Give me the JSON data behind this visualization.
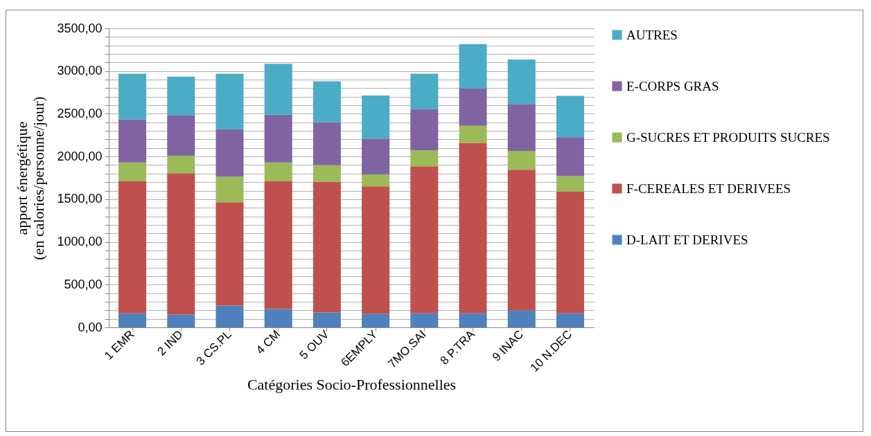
{
  "chart_data": {
    "type": "bar",
    "stacked": true,
    "xlabel": "Catégories Socio-Professionnelles",
    "ylabel": "apport énergétique\n(en calories/personne/jour)",
    "categories": [
      "1 EMR",
      "2 IND",
      "3 CS.PL",
      "4 CM",
      "5 OUV",
      "6EMPLY",
      "7MO.SAI",
      "8 P.TRA",
      "9 INAC",
      "10 N.DEC"
    ],
    "series": [
      {
        "name": "D-LAIT ET DERIVES",
        "color": "#4f81bd",
        "values": [
          165,
          150,
          255,
          215,
          175,
          160,
          165,
          165,
          200,
          165
        ]
      },
      {
        "name": "F-CEREALES ET DERIVEES",
        "color": "#c0504d",
        "values": [
          1545,
          1655,
          1210,
          1495,
          1530,
          1490,
          1720,
          1995,
          1645,
          1425
        ]
      },
      {
        "name": "G-SUCRES ET PRODUITS SUCRES",
        "color": "#9bbb59",
        "values": [
          220,
          205,
          300,
          220,
          195,
          140,
          190,
          200,
          220,
          180
        ]
      },
      {
        "name": "E-CORPS GRAS",
        "color": "#8064a2",
        "values": [
          505,
          470,
          555,
          560,
          500,
          420,
          480,
          435,
          550,
          455
        ]
      },
      {
        "name": "AUTRES",
        "color": "#4bacc6",
        "values": [
          535,
          455,
          650,
          595,
          480,
          505,
          415,
          520,
          520,
          485
        ]
      }
    ],
    "ylim": [
      0,
      3500
    ],
    "yticks": [
      {
        "value": 0,
        "label": "0,00"
      },
      {
        "value": 100,
        "label": null
      },
      {
        "value": 200,
        "label": null
      },
      {
        "value": 300,
        "label": null
      },
      {
        "value": 400,
        "label": null
      },
      {
        "value": 500,
        "label": "500,00"
      },
      {
        "value": 600,
        "label": null
      },
      {
        "value": 700,
        "label": null
      },
      {
        "value": 800,
        "label": null
      },
      {
        "value": 900,
        "label": null
      },
      {
        "value": 1000,
        "label": "1000,00"
      },
      {
        "value": 1100,
        "label": null
      },
      {
        "value": 1200,
        "label": null
      },
      {
        "value": 1300,
        "label": null
      },
      {
        "value": 1400,
        "label": null
      },
      {
        "value": 1500,
        "label": "1500,00"
      },
      {
        "value": 1600,
        "label": null
      },
      {
        "value": 1700,
        "label": null
      },
      {
        "value": 1800,
        "label": null
      },
      {
        "value": 1900,
        "label": null
      },
      {
        "value": 2000,
        "label": "2000,00"
      },
      {
        "value": 2100,
        "label": null
      },
      {
        "value": 2200,
        "label": null
      },
      {
        "value": 2300,
        "label": null
      },
      {
        "value": 2400,
        "label": null
      },
      {
        "value": 2500,
        "label": "2500,00"
      },
      {
        "value": 2600,
        "label": null
      },
      {
        "value": 2700,
        "label": null
      },
      {
        "value": 2800,
        "label": null
      },
      {
        "value": 2900,
        "label": null
      },
      {
        "value": 3000,
        "label": "3000,00"
      },
      {
        "value": 3100,
        "label": null
      },
      {
        "value": 3200,
        "label": null
      },
      {
        "value": 3300,
        "label": null
      },
      {
        "value": 3400,
        "label": null
      },
      {
        "value": 3500,
        "label": "3500,00"
      }
    ],
    "grid": "y",
    "legend": "right"
  }
}
